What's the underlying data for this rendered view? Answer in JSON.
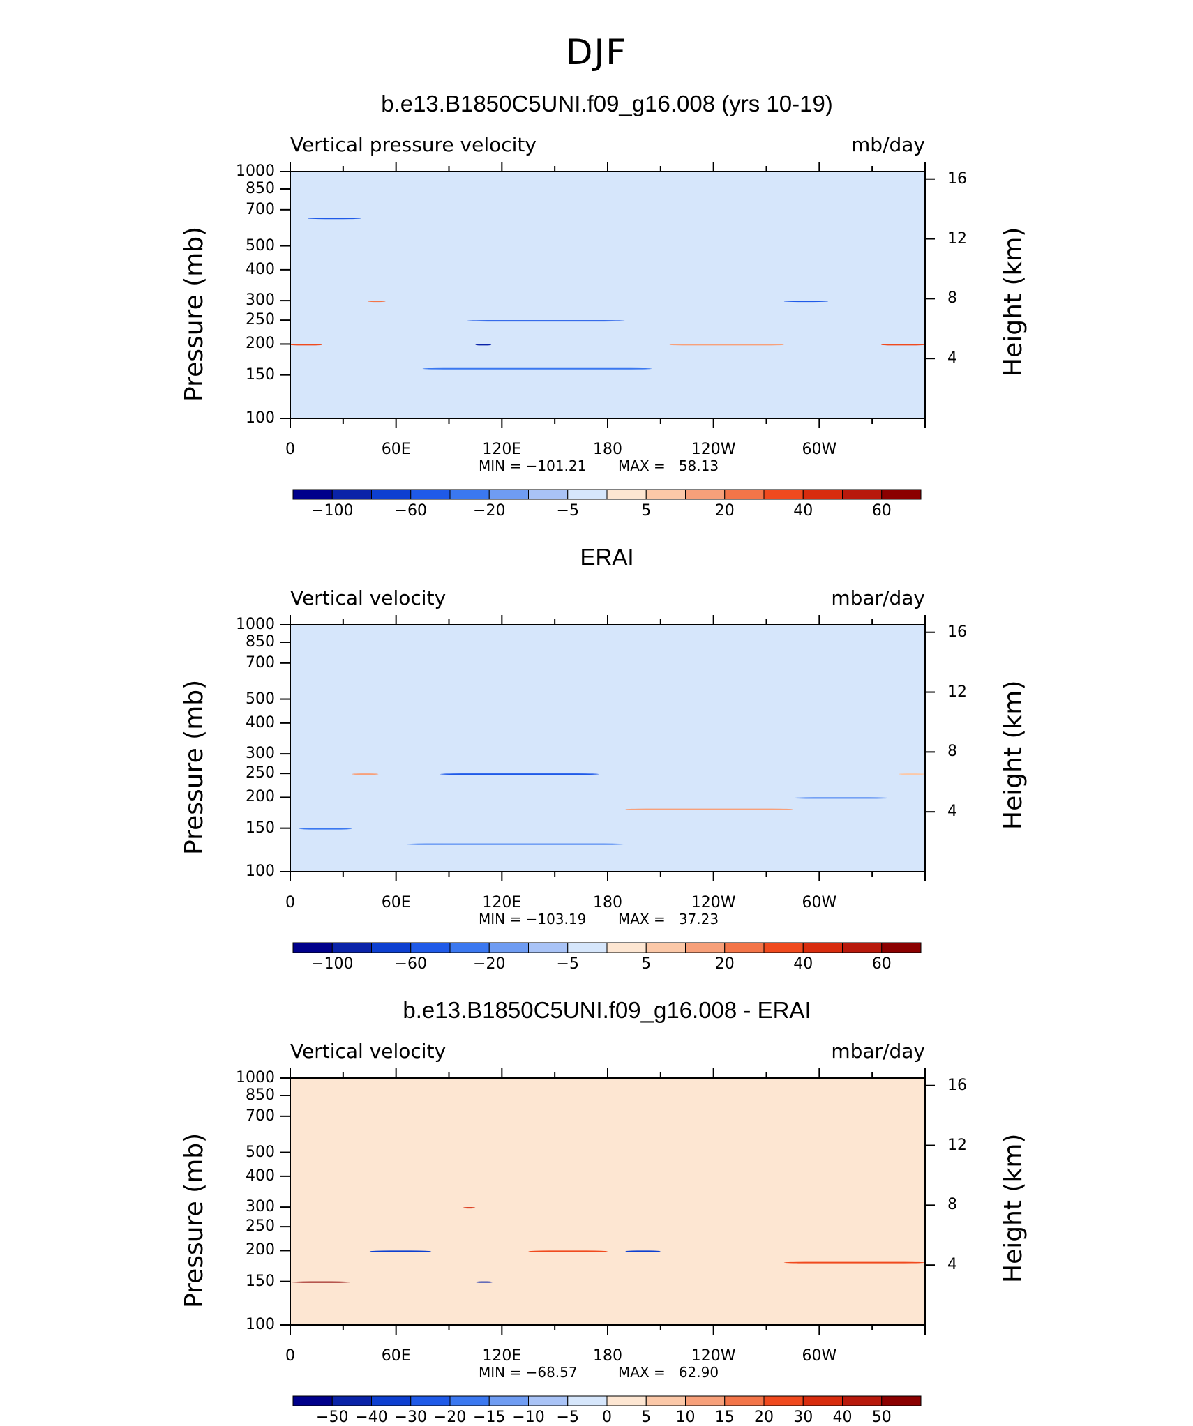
{
  "main_title": "DJF",
  "levels_ticks": [
    "100",
    "150",
    "200",
    "250",
    "300",
    "400",
    "500",
    "700",
    "850",
    "1000"
  ],
  "height_ticks": [
    "16",
    "12",
    "8",
    "4"
  ],
  "lon_ticks": [
    "0",
    "60E",
    "120E",
    "180",
    "120W",
    "60W"
  ],
  "ylabel_left": "Pressure (mb)",
  "ylabel_right": "Height (km)",
  "colors": {
    "full": [
      "#00008b",
      "#0a23a8",
      "#0d3fd0",
      "#1f5ae8",
      "#3b78f0",
      "#6f9cf2",
      "#a9c3f6",
      "#d6e6fb",
      "#fde6d2",
      "#fbc8a8",
      "#f7a07a",
      "#f37549",
      "#f04a1e",
      "#d82c0e",
      "#b8190c",
      "#8b0000"
    ],
    "diff": [
      "#00008b",
      "#0a23a8",
      "#0d3fd0",
      "#1f5ae8",
      "#3b78f0",
      "#6f9cf2",
      "#a9c3f6",
      "#d6e6fb",
      "#fde6d2",
      "#fbc8a8",
      "#f7a07a",
      "#f37549",
      "#f04a1e",
      "#d82c0e",
      "#b8190c",
      "#8b0000"
    ]
  },
  "panels": [
    {
      "title": "b.e13.B1850C5UNI.f09_g16.008 (yrs 10-19)",
      "left_label": "Vertical pressure velocity",
      "right_label": "mb/day",
      "min_label": "MIN = −101.21",
      "max_label": "MAX =   58.13",
      "colorbar_labels": [
        "−100",
        "−60",
        "−20",
        "−5",
        "5",
        "20",
        "40",
        "60"
      ]
    },
    {
      "title": "ERAI",
      "left_label": "Vertical velocity",
      "right_label": "mbar/day",
      "min_label": "MIN = −103.19",
      "max_label": "MAX =   37.23",
      "colorbar_labels": [
        "−100",
        "−60",
        "−20",
        "−5",
        "5",
        "20",
        "40",
        "60"
      ]
    },
    {
      "title": "b.e13.B1850C5UNI.f09_g16.008 - ERAI",
      "left_label": "Vertical velocity",
      "right_label": "mbar/day",
      "min_label": "MIN = −68.57",
      "max_label": "MAX =   62.90",
      "colorbar_labels": [
        "−50",
        "−40",
        "−30",
        "−20",
        "−15",
        "−10",
        "−5",
        "0",
        "5",
        "10",
        "15",
        "20",
        "30",
        "40",
        "50"
      ]
    }
  ],
  "chart_data": [
    {
      "type": "heatmap",
      "title": "b.e13.B1850C5UNI.f09_g16.008 (yrs 10-19)",
      "ylabel": "Pressure (mb)",
      "y2label": "Height (km)",
      "x_range": [
        0,
        360
      ],
      "y_range": [
        1000,
        100
      ],
      "colorbar_levels": [
        -100,
        -80,
        -60,
        -40,
        -20,
        -10,
        -5,
        0,
        5,
        10,
        20,
        30,
        40,
        50,
        60
      ],
      "min": -101.21,
      "max": 58.13,
      "regions": [
        {
          "x": [
            0,
            18
          ],
          "y": [
            850,
            200
          ],
          "value": 35
        },
        {
          "x": [
            10,
            40
          ],
          "y": [
            1000,
            650
          ],
          "value": -45
        },
        {
          "x": [
            44,
            54
          ],
          "y": [
            1000,
            300
          ],
          "value": 25
        },
        {
          "x": [
            75,
            205
          ],
          "y": [
            950,
            160
          ],
          "value": -35
        },
        {
          "x": [
            100,
            190
          ],
          "y": [
            850,
            250
          ],
          "value": -50
        },
        {
          "x": [
            105,
            114
          ],
          "y": [
            1000,
            200
          ],
          "value": -90
        },
        {
          "x": [
            215,
            280
          ],
          "y": [
            900,
            200
          ],
          "value": 20
        },
        {
          "x": [
            280,
            305
          ],
          "y": [
            1000,
            300
          ],
          "value": -40
        },
        {
          "x": [
            335,
            360
          ],
          "y": [
            700,
            200
          ],
          "value": 35
        }
      ]
    },
    {
      "type": "heatmap",
      "title": "ERAI",
      "ylabel": "Pressure (mb)",
      "y2label": "Height (km)",
      "x_range": [
        0,
        360
      ],
      "y_range": [
        1000,
        100
      ],
      "colorbar_levels": [
        -100,
        -80,
        -60,
        -40,
        -20,
        -10,
        -5,
        0,
        5,
        10,
        20,
        30,
        40,
        50,
        60
      ],
      "min": -103.19,
      "max": 37.23,
      "regions": [
        {
          "x": [
            5,
            35
          ],
          "y": [
            1000,
            150
          ],
          "value": -30
        },
        {
          "x": [
            35,
            50
          ],
          "y": [
            950,
            250
          ],
          "value": 20
        },
        {
          "x": [
            65,
            190
          ],
          "y": [
            1000,
            130
          ],
          "value": -35
        },
        {
          "x": [
            85,
            175
          ],
          "y": [
            850,
            250
          ],
          "value": -50
        },
        {
          "x": [
            190,
            285
          ],
          "y": [
            1000,
            180
          ],
          "value": 12
        },
        {
          "x": [
            285,
            340
          ],
          "y": [
            1000,
            200
          ],
          "value": -35
        },
        {
          "x": [
            345,
            360
          ],
          "y": [
            500,
            250
          ],
          "value": 10
        }
      ]
    },
    {
      "type": "heatmap",
      "title": "b.e13.B1850C5UNI.f09_g16.008 - ERAI",
      "ylabel": "Pressure (mb)",
      "y2label": "Height (km)",
      "x_range": [
        0,
        360
      ],
      "y_range": [
        1000,
        100
      ],
      "colorbar_levels": [
        -50,
        -40,
        -30,
        -20,
        -15,
        -10,
        -5,
        0,
        5,
        10,
        15,
        20,
        30,
        40,
        50
      ],
      "min": -68.57,
      "max": 62.9,
      "regions": [
        {
          "x": [
            0,
            35
          ],
          "y": [
            1000,
            150
          ],
          "value": 55
        },
        {
          "x": [
            45,
            80
          ],
          "y": [
            850,
            200
          ],
          "value": -35
        },
        {
          "x": [
            98,
            105
          ],
          "y": [
            1000,
            300
          ],
          "value": 40
        },
        {
          "x": [
            105,
            115
          ],
          "y": [
            1000,
            150
          ],
          "value": -40
        },
        {
          "x": [
            135,
            180
          ],
          "y": [
            850,
            200
          ],
          "value": 25
        },
        {
          "x": [
            190,
            210
          ],
          "y": [
            700,
            200
          ],
          "value": -35
        },
        {
          "x": [
            280,
            360
          ],
          "y": [
            1000,
            180
          ],
          "value": 30
        }
      ]
    }
  ]
}
